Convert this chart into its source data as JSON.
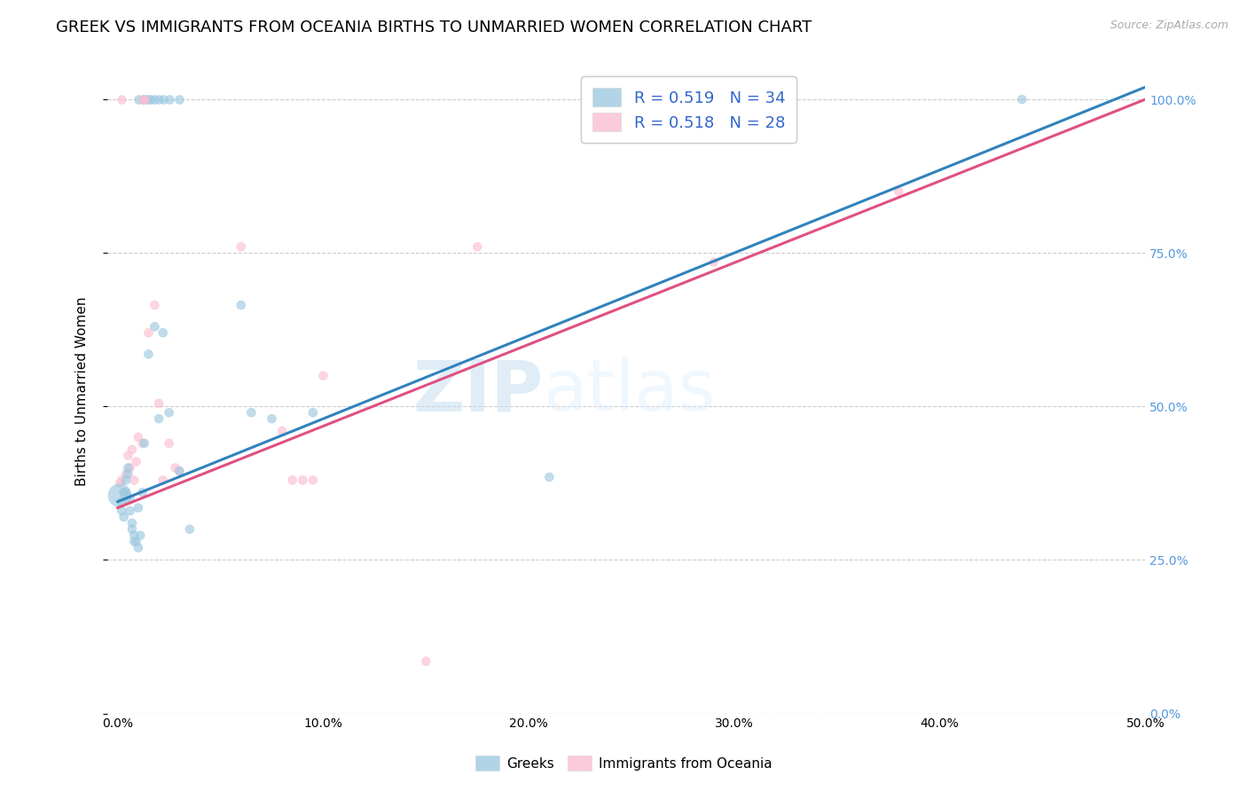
{
  "title": "GREEK VS IMMIGRANTS FROM OCEANIA BIRTHS TO UNMARRIED WOMEN CORRELATION CHART",
  "source": "Source: ZipAtlas.com",
  "ylabel": "Births to Unmarried Women",
  "xlim": [
    -0.005,
    0.5
  ],
  "ylim": [
    0.0,
    1.05
  ],
  "yticks": [
    0.0,
    0.25,
    0.5,
    0.75,
    1.0
  ],
  "ytick_right_labels": [
    "0.0%",
    "25.0%",
    "50.0%",
    "75.0%",
    "100.0%"
  ],
  "xticks": [
    0.0,
    0.1,
    0.2,
    0.3,
    0.4,
    0.5
  ],
  "xtick_labels": [
    "0.0%",
    "10.0%",
    "20.0%",
    "30.0%",
    "40.0%",
    "50.0%"
  ],
  "legend_blue_label": "R = 0.519   N = 34",
  "legend_pink_label": "R = 0.518   N = 28",
  "legend_bottom_blue": "Greeks",
  "legend_bottom_pink": "Immigrants from Oceania",
  "blue_color": "#9ecae1",
  "pink_color": "#fcbfd2",
  "blue_line_color": "#3182bd",
  "pink_line_color": "#e05080",
  "watermark_zip": "ZIP",
  "watermark_atlas": "atlas",
  "blue_x": [
    0.001,
    0.002,
    0.002,
    0.003,
    0.003,
    0.004,
    0.004,
    0.005,
    0.005,
    0.006,
    0.006,
    0.007,
    0.007,
    0.008,
    0.008,
    0.009,
    0.01,
    0.01,
    0.011,
    0.012,
    0.013,
    0.015,
    0.018,
    0.02,
    0.022,
    0.025,
    0.03,
    0.035,
    0.06,
    0.065,
    0.075,
    0.095,
    0.21,
    0.44
  ],
  "blue_y": [
    0.355,
    0.345,
    0.33,
    0.36,
    0.32,
    0.38,
    0.36,
    0.4,
    0.39,
    0.35,
    0.33,
    0.31,
    0.3,
    0.29,
    0.28,
    0.28,
    0.27,
    0.335,
    0.29,
    0.36,
    0.44,
    0.585,
    0.63,
    0.48,
    0.62,
    0.49,
    0.395,
    0.3,
    0.665,
    0.49,
    0.48,
    0.49,
    0.385,
    1.0
  ],
  "blue_size": [
    350,
    50,
    50,
    50,
    50,
    50,
    50,
    50,
    50,
    50,
    50,
    50,
    50,
    50,
    50,
    50,
    50,
    50,
    50,
    50,
    50,
    50,
    50,
    50,
    50,
    50,
    50,
    50,
    50,
    50,
    50,
    50,
    50,
    50
  ],
  "pink_x": [
    0.001,
    0.002,
    0.003,
    0.004,
    0.005,
    0.006,
    0.007,
    0.008,
    0.009,
    0.01,
    0.012,
    0.015,
    0.018,
    0.02,
    0.022,
    0.025,
    0.028,
    0.03,
    0.06,
    0.08,
    0.085,
    0.09,
    0.095,
    0.1,
    0.15,
    0.175,
    0.29,
    0.38
  ],
  "pink_y": [
    0.375,
    0.38,
    0.36,
    0.39,
    0.42,
    0.4,
    0.43,
    0.38,
    0.41,
    0.45,
    0.44,
    0.62,
    0.665,
    0.505,
    0.38,
    0.44,
    0.4,
    0.395,
    0.76,
    0.46,
    0.38,
    0.38,
    0.38,
    0.55,
    0.085,
    0.76,
    0.735,
    0.85
  ],
  "pink_size": [
    50,
    50,
    50,
    50,
    50,
    50,
    50,
    50,
    50,
    50,
    50,
    50,
    50,
    50,
    50,
    50,
    50,
    50,
    50,
    50,
    50,
    50,
    50,
    50,
    50,
    50,
    50,
    50
  ],
  "blue_r": 0.519,
  "blue_n": 34,
  "pink_r": 0.518,
  "pink_n": 28,
  "background_color": "#ffffff",
  "grid_color": "#cccccc",
  "title_fontsize": 13,
  "axis_label_fontsize": 11,
  "tick_fontsize": 10,
  "right_tick_color": "#5599dd",
  "legend_text_color": "#3366cc"
}
